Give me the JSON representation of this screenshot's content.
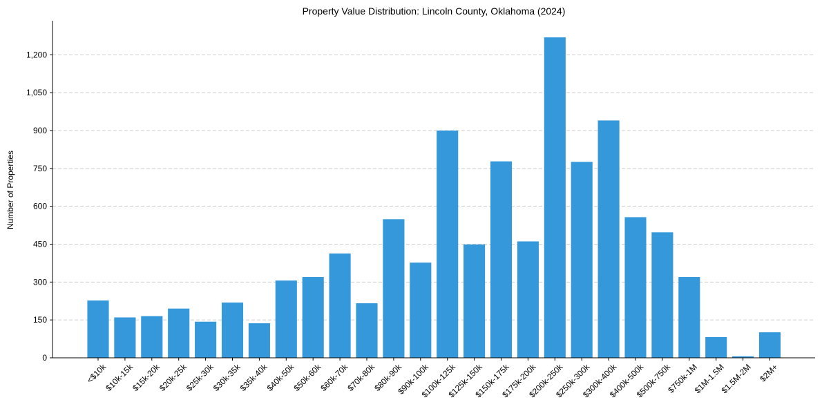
{
  "chart_data": {
    "type": "bar",
    "title": "Property Value Distribution: Lincoln County, Oklahoma (2024)",
    "xlabel": "",
    "ylabel": "Number of Properties",
    "categories": [
      "<$10k",
      "$10k-15k",
      "$15k-20k",
      "$20k-25k",
      "$25k-30k",
      "$30k-35k",
      "$35k-40k",
      "$40k-50k",
      "$50k-60k",
      "$60k-70k",
      "$70k-80k",
      "$80k-90k",
      "$90k-100k",
      "$100k-125k",
      "$125k-150k",
      "$150k-175k",
      "$175k-200k",
      "$200k-250k",
      "$250k-300k",
      "$300k-400k",
      "$400k-500k",
      "$500k-750k",
      "$750k-1M",
      "$1M-1.5M",
      "$1.5M-2M",
      "$2M+"
    ],
    "values": [
      227,
      160,
      165,
      195,
      143,
      219,
      137,
      306,
      320,
      413,
      216,
      549,
      377,
      900,
      449,
      778,
      461,
      1269,
      776,
      940,
      557,
      497,
      320,
      82,
      6,
      101
    ],
    "ylim": [
      0,
      1335
    ],
    "yticks": [
      0,
      150,
      300,
      450,
      600,
      750,
      900,
      1050,
      1200
    ],
    "ytick_labels": [
      "0",
      "150",
      "300",
      "450",
      "600",
      "750",
      "900",
      "1,050",
      "1,200"
    ],
    "grid": "y-dashed",
    "bar_color": "#3498db",
    "grid_color": "#cccccc"
  }
}
